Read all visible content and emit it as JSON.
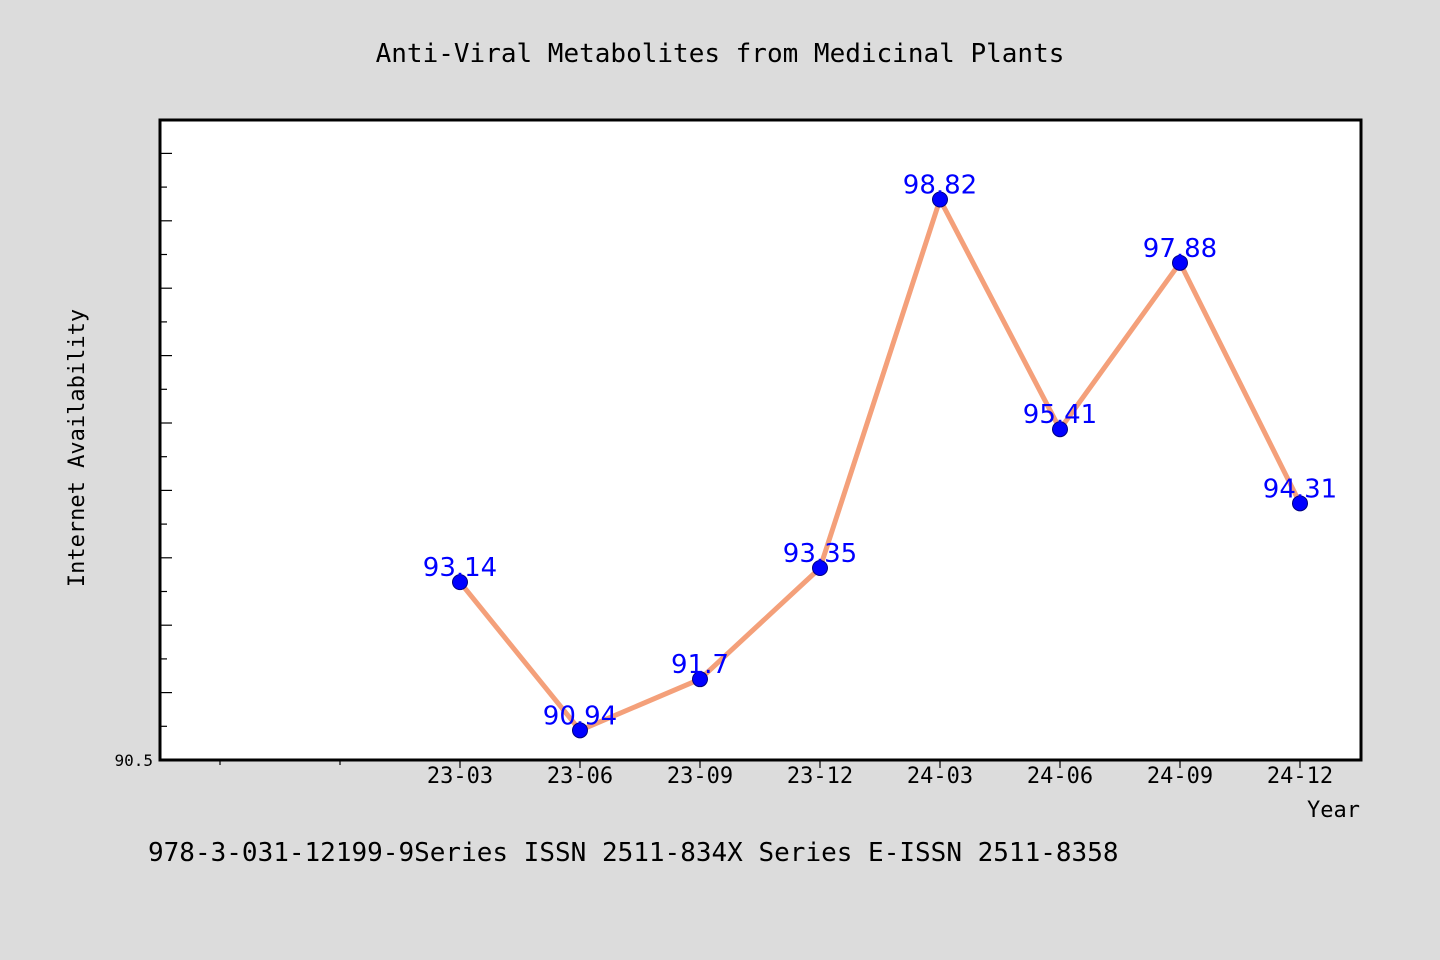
{
  "chart_data": {
    "type": "line",
    "title": "Anti-Viral Metabolites from Medicinal Plants",
    "xlabel": "Year",
    "ylabel": "Internet Availability",
    "categories": [
      "23-03",
      "23-06",
      "23-09",
      "23-12",
      "24-03",
      "24-06",
      "24-09",
      "24-12"
    ],
    "series": [
      {
        "values": [
          93.14,
          90.94,
          91.7,
          93.35,
          98.82,
          95.41,
          97.88,
          94.31
        ],
        "labels": [
          "93.14",
          "90.94",
          "91.7",
          "93.35",
          "98.82",
          "95.41",
          "97.88",
          "94.31"
        ]
      }
    ],
    "ylim": [
      90.5,
      100
    ],
    "yticks_labeled": [
      "90.5"
    ],
    "grid": false,
    "colors": {
      "line": "#f4a07a",
      "marker": "#0000ff",
      "label": "#0000ff",
      "plot_bg": "#ffffff",
      "page_bg": "#dcdcdc"
    }
  },
  "footer": "978-3-031-12199-9Series ISSN 2511-834X Series E-ISSN 2511-8358"
}
